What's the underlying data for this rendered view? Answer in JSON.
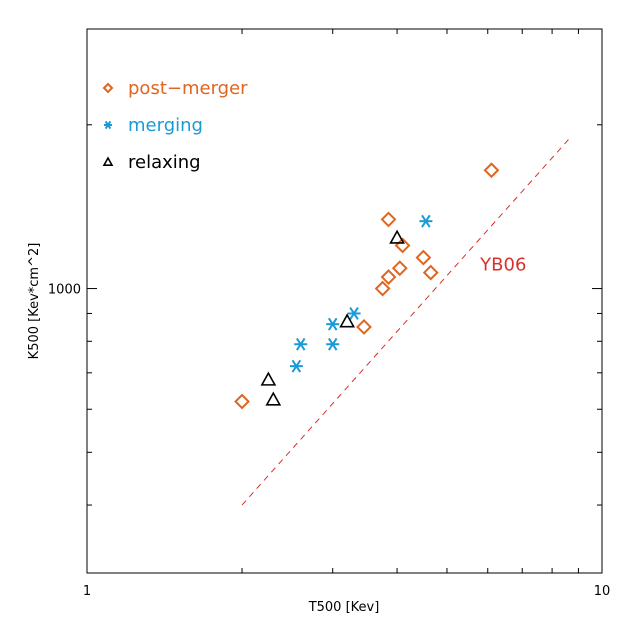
{
  "chart_data": {
    "type": "scatter",
    "title": "",
    "xlabel": "T500 [Kev]",
    "ylabel": "K500 [Kev*cm^2]",
    "x_scale": "log",
    "y_scale": "log",
    "xlim": [
      1,
      10
    ],
    "ylim": [
      300,
      3000
    ],
    "x_tick_labels": [
      {
        "value": 1,
        "label": "1"
      },
      {
        "value": 10,
        "label": "10"
      }
    ],
    "y_tick_labels": [
      {
        "value": 1000,
        "label": "1000"
      }
    ],
    "grid": false,
    "legend_position": "top-left",
    "colors": {
      "post_merger": "#e0651e",
      "merging": "#1a9ad6",
      "relaxing": "#000000",
      "yb06": "#d9302b"
    },
    "series": [
      {
        "name": "post−merger",
        "marker": "diamond",
        "color": "#e0651e",
        "points": [
          [
            2.0,
            620
          ],
          [
            3.45,
            850
          ],
          [
            3.75,
            1000
          ],
          [
            3.85,
            1050
          ],
          [
            4.05,
            1090
          ],
          [
            4.1,
            1200
          ],
          [
            3.85,
            1340
          ],
          [
            4.5,
            1140
          ],
          [
            4.65,
            1070
          ],
          [
            6.1,
            1650
          ]
        ]
      },
      {
        "name": "merging",
        "marker": "asterisk",
        "color": "#1a9ad6",
        "points": [
          [
            2.55,
            720
          ],
          [
            2.6,
            790
          ],
          [
            3.0,
            790
          ],
          [
            3.0,
            860
          ],
          [
            3.3,
            900
          ],
          [
            4.55,
            1330
          ]
        ]
      },
      {
        "name": "relaxing",
        "marker": "triangle",
        "color": "#000000",
        "points": [
          [
            2.25,
            680
          ],
          [
            2.3,
            625
          ],
          [
            3.2,
            870
          ],
          [
            4.0,
            1240
          ]
        ]
      }
    ],
    "annotations": [
      {
        "text": "YB06",
        "color": "#d9302b",
        "line": [
          [
            2.0,
            400
          ],
          [
            8.7,
            1900
          ]
        ],
        "label_at": [
          5.8,
          1080
        ]
      }
    ]
  }
}
